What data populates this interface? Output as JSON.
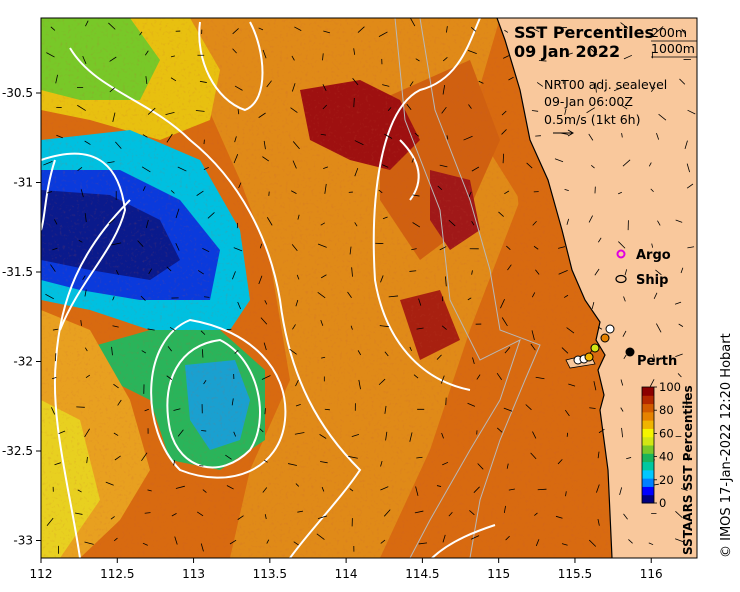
{
  "title": "SST Percentiles",
  "date": "09 Jan 2022",
  "isobaths": [
    "200m",
    "1000m"
  ],
  "current_info": [
    "NRT00 adj. sealevel",
    "09-Jan 06:00Z",
    "0.5m/s (1kt 6h)"
  ],
  "legend": [
    {
      "label": "Argo",
      "marker": "magenta-ring"
    },
    {
      "label": "Ship",
      "marker": "black-ring"
    }
  ],
  "place": "Perth",
  "x_ticks": [
    "112",
    "112.5",
    "113",
    "113.5",
    "114",
    "114.5",
    "115",
    "115.5",
    "116"
  ],
  "y_ticks": [
    "-30.5",
    "-31",
    "-31.5",
    "-32",
    "-32.5",
    "-33"
  ],
  "colorbar": {
    "title": "SSTAARS SST Percentiles",
    "ticks": [
      "100",
      "80",
      "60",
      "40",
      "20",
      "0"
    ],
    "colors": [
      "#00007f",
      "#0000ff",
      "#0080ff",
      "#00c8ff",
      "#00c8a0",
      "#1ab45a",
      "#78c828",
      "#d2e614",
      "#f5f500",
      "#f0b400",
      "#e68200",
      "#d25a00",
      "#b42800",
      "#8c0000"
    ]
  },
  "credit": "© IMOS 17-Jan-2022 12:20 Hobart",
  "colors": {
    "land": "#f9c89c",
    "sea_base": "#d86a10",
    "warm": "#e8a020",
    "hot": "#9e1010",
    "cold": "#0a1a8c",
    "cool": "#1aa0d0"
  }
}
